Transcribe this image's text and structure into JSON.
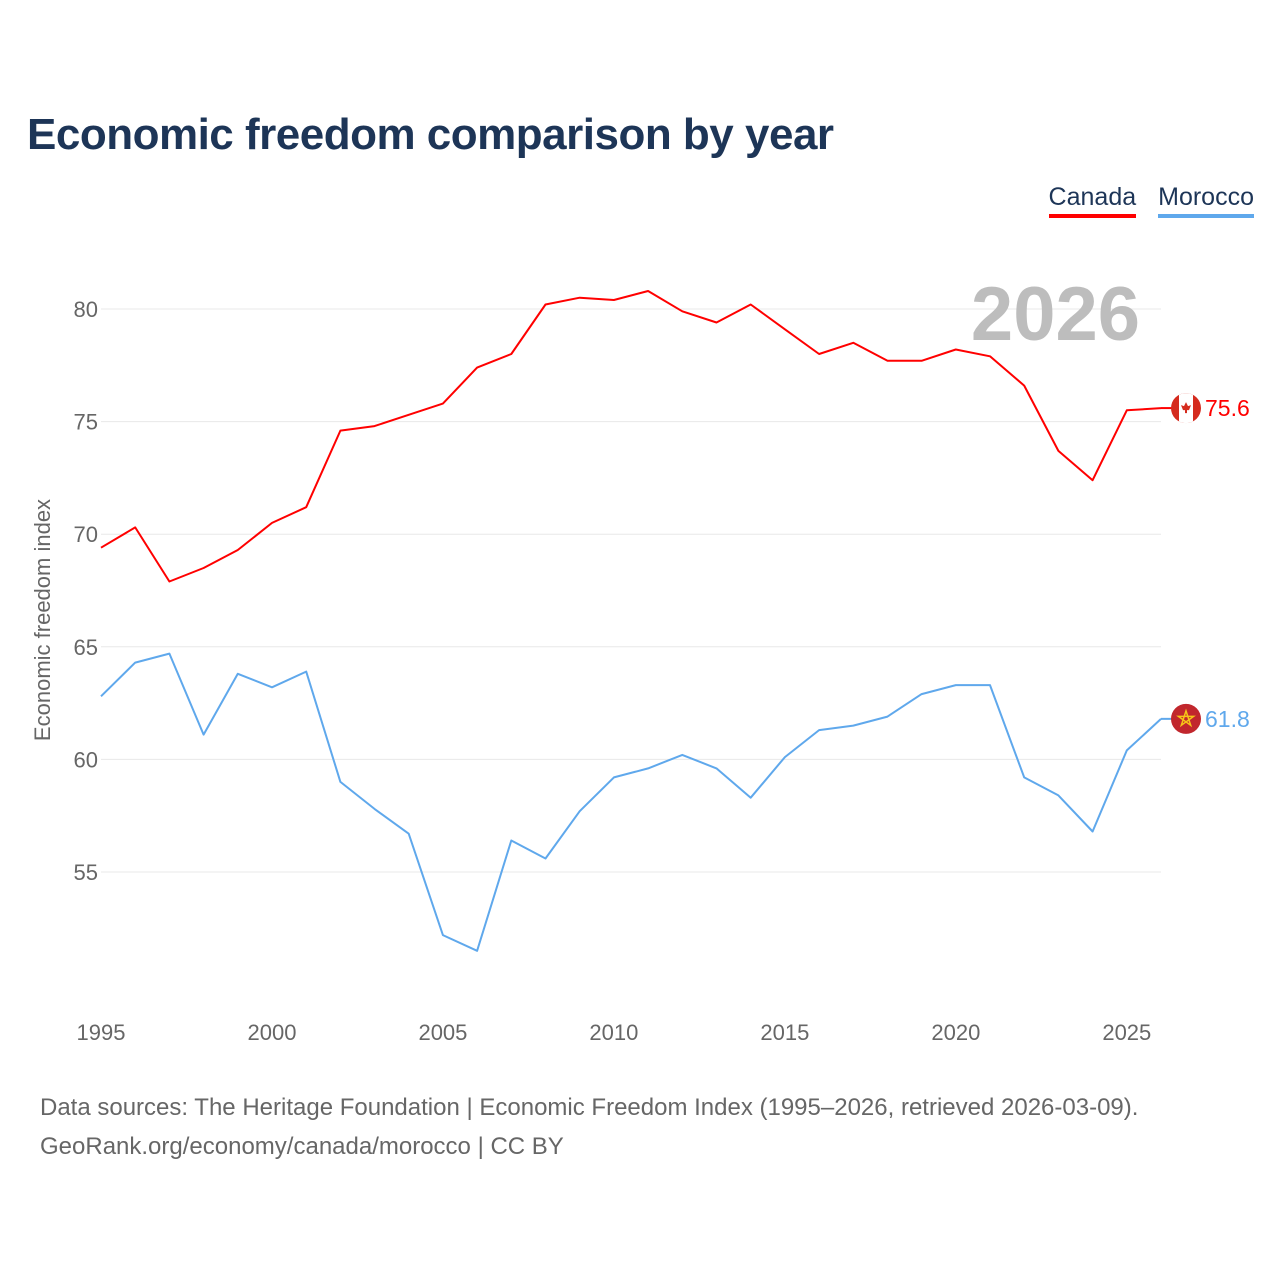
{
  "chart_data": {
    "type": "line",
    "title": "Economic freedom comparison by year",
    "ylabel": "Economic freedom index",
    "xlabel": "",
    "ylim": [
      49.3,
      82.6
    ],
    "xlim": [
      1995,
      2026
    ],
    "yticks": [
      55,
      60,
      65,
      70,
      75,
      80
    ],
    "xticks": [
      1995,
      2000,
      2005,
      2010,
      2015,
      2020,
      2025
    ],
    "grid": true,
    "legend_position": "top-right",
    "year_label": "2026",
    "x": [
      1995,
      1996,
      1997,
      1998,
      1999,
      2000,
      2001,
      2002,
      2003,
      2004,
      2005,
      2006,
      2007,
      2008,
      2009,
      2010,
      2011,
      2012,
      2013,
      2014,
      2015,
      2016,
      2017,
      2018,
      2019,
      2020,
      2021,
      2022,
      2023,
      2024,
      2025,
      2026
    ],
    "series": [
      {
        "name": "Canada",
        "color": "#ff0000",
        "end_label": "75.6",
        "values": [
          69.4,
          70.3,
          67.9,
          68.5,
          69.3,
          70.5,
          71.2,
          74.6,
          74.8,
          75.3,
          75.8,
          77.4,
          78.0,
          80.2,
          80.5,
          80.4,
          80.8,
          79.9,
          79.4,
          80.2,
          79.1,
          78.0,
          78.5,
          77.7,
          77.7,
          78.2,
          77.9,
          76.6,
          73.7,
          72.4,
          75.5,
          75.6
        ]
      },
      {
        "name": "Morocco",
        "color": "#5fa8ec",
        "end_label": "61.8",
        "values": [
          62.8,
          64.3,
          64.7,
          61.1,
          63.8,
          63.2,
          63.9,
          59.0,
          57.8,
          56.7,
          52.2,
          51.5,
          56.4,
          55.6,
          57.7,
          59.2,
          59.6,
          60.2,
          59.6,
          58.3,
          60.1,
          61.3,
          61.5,
          61.9,
          62.9,
          63.3,
          63.3,
          59.2,
          58.4,
          56.8,
          60.4,
          61.8
        ]
      }
    ]
  },
  "footer": {
    "line1": "Data sources: The Heritage Foundation | Economic Freedom Index (1995–2026, retrieved 2026-03-09).",
    "line2": "GeoRank.org/economy/canada/morocco | CC BY"
  }
}
